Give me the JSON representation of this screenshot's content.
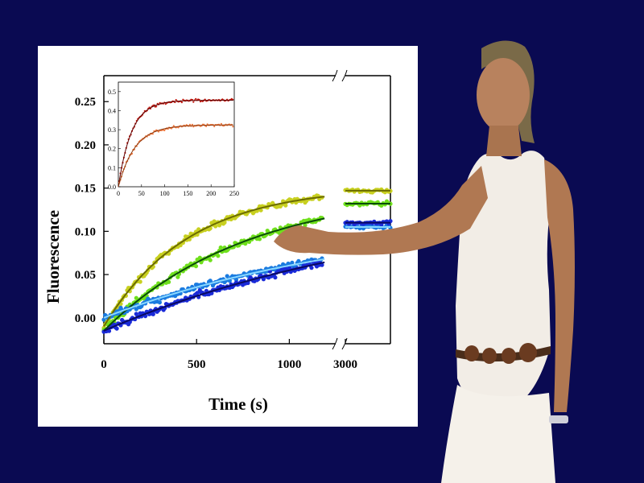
{
  "chart_data": [
    {
      "type": "scatter",
      "xlabel": "Time (s)",
      "ylabel": "Fluorescence",
      "xlim": [
        0,
        1250
      ],
      "x_break": {
        "resume_at": 3000,
        "resume_end": 3150
      },
      "ylim": [
        -0.03,
        0.28
      ],
      "x_ticks": [
        0,
        500,
        1000,
        3000
      ],
      "y_ticks": [
        0.0,
        0.05,
        0.1,
        0.15,
        0.2,
        0.25
      ],
      "y_tick_labels": [
        "0.00",
        "0.05",
        "0.10",
        "0.15",
        "0.20",
        "0.25"
      ],
      "grid": false,
      "legend": "none",
      "series": [
        {
          "color": "#c8d020",
          "fit_color": "#6b6b00",
          "y0": -0.01,
          "plateau": 0.152,
          "k": 0.0022,
          "late_value": 0.147
        },
        {
          "color": "#6fe01c",
          "fit_color": "#0a4a0a",
          "y0": -0.015,
          "plateau": 0.15,
          "k": 0.0013,
          "late_value": 0.132
        },
        {
          "color": "#1a7be0",
          "fit_color": "#8ad8ff",
          "y0": 0.0,
          "plateau": 0.12,
          "k": 0.0007,
          "late_value": 0.105
        },
        {
          "color": "#1a2ad8",
          "fit_color": "#0a0a60",
          "y0": -0.015,
          "plateau": 0.14,
          "k": 0.0006,
          "late_value": 0.11
        }
      ]
    },
    {
      "type": "scatter",
      "position": "inset",
      "xlim": [
        0,
        250
      ],
      "ylim": [
        0,
        0.55
      ],
      "x_ticks": [
        0,
        50,
        100,
        150,
        200,
        250
      ],
      "y_ticks": [
        0.0,
        0.1,
        0.2,
        0.3,
        0.4,
        0.5
      ],
      "y_tick_labels": [
        "0.0",
        "0.1",
        "0.2",
        "0.3",
        "0.4",
        "0.5"
      ],
      "series": [
        {
          "color": "#c41a10",
          "fit_color": "#5a0000",
          "plateau": 0.455,
          "k": 0.035
        },
        {
          "color": "#f07a40",
          "fit_color": "#8a3a10",
          "plateau": 0.325,
          "k": 0.028
        }
      ]
    }
  ],
  "colors": {
    "background": "#0a0a52",
    "panel": "#ffffff"
  }
}
